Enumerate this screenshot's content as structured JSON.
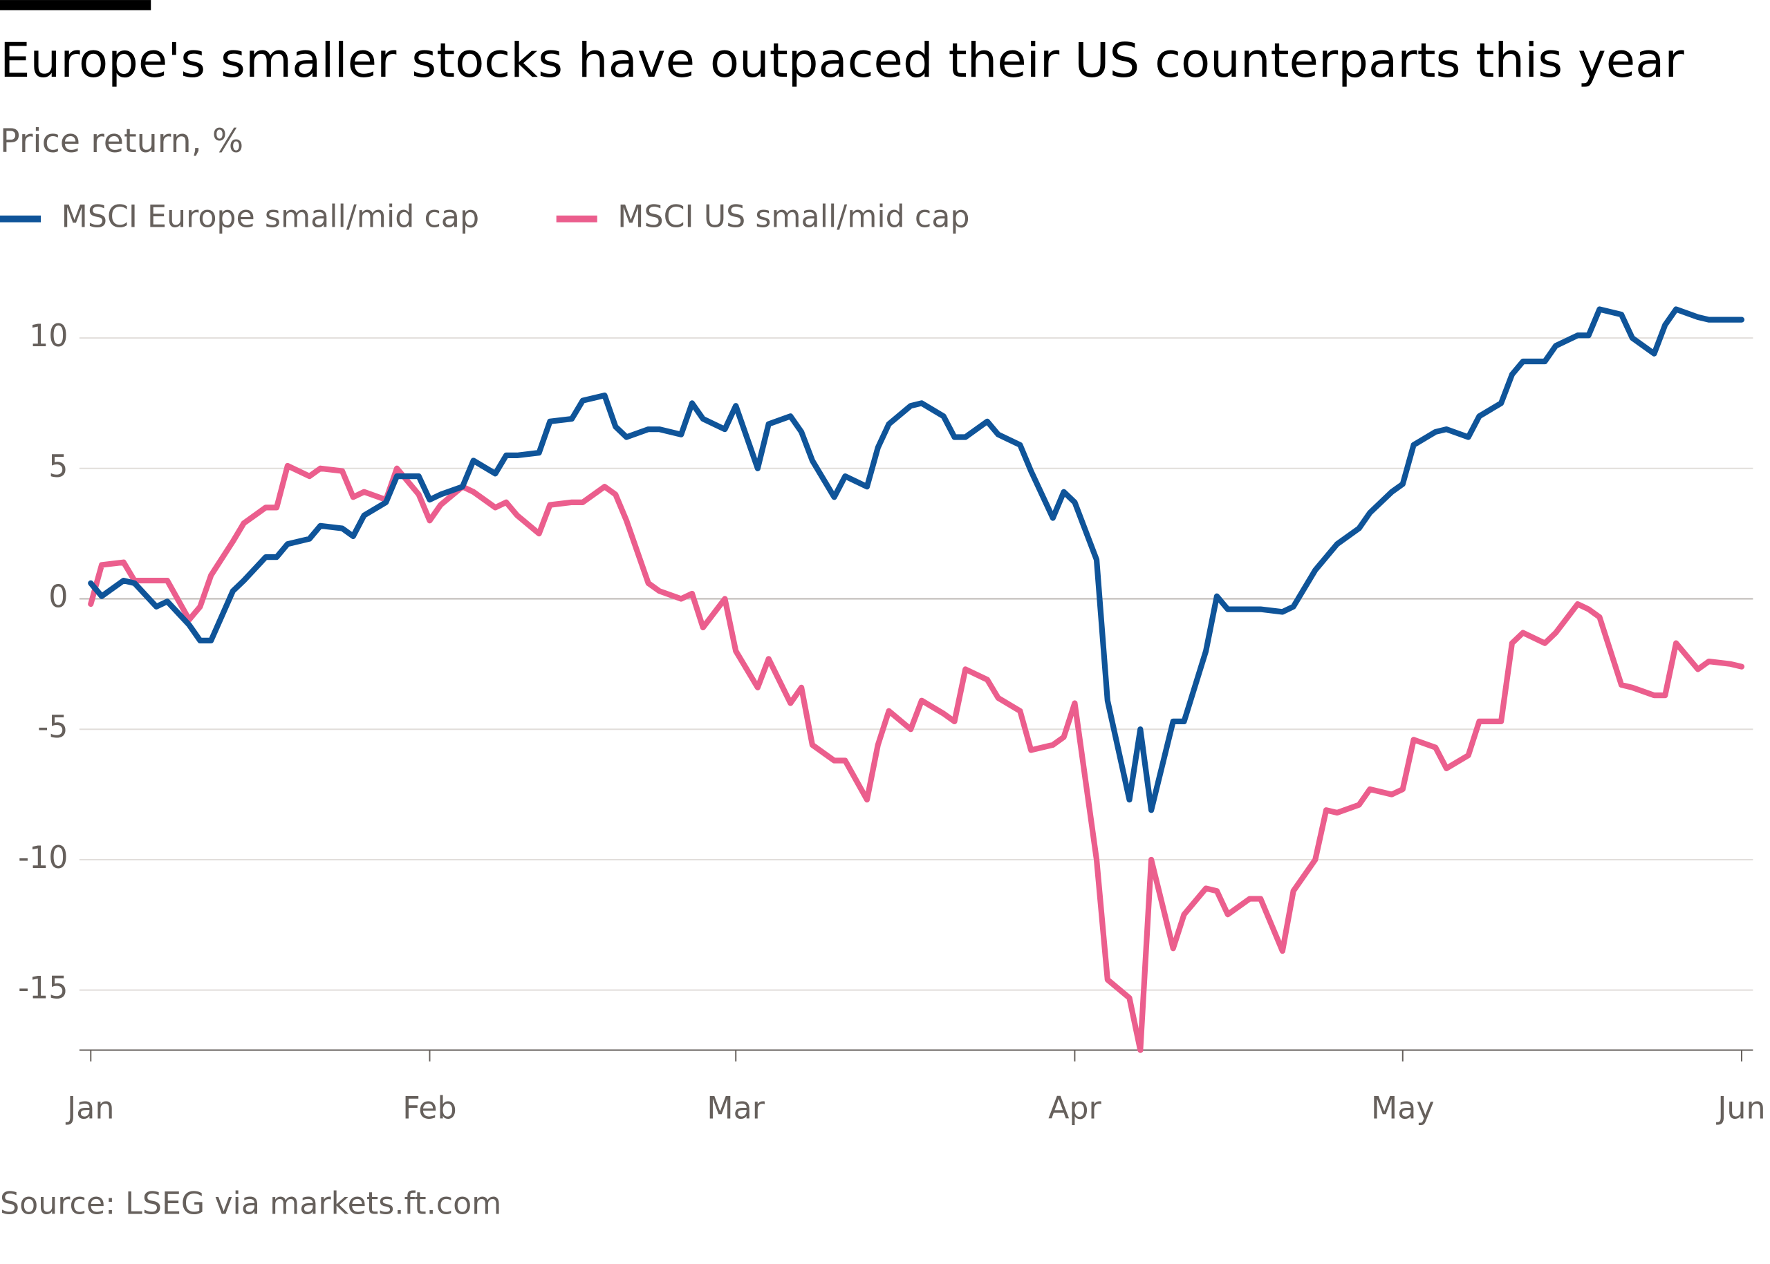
{
  "chart_data": {
    "type": "line",
    "title": "Europe's smaller stocks have outpaced their US counterparts this year",
    "subtitle": "Price return, %",
    "source": "Source: LSEG via markets.ft.com",
    "x": [
      0,
      1,
      3,
      4,
      6,
      7,
      9,
      10,
      11,
      13,
      14,
      16,
      17,
      18,
      20,
      21,
      23,
      24,
      25,
      27,
      28,
      30,
      31,
      32,
      34,
      35,
      37,
      38,
      39,
      41,
      42,
      44,
      45,
      47,
      48,
      49,
      51,
      52,
      54,
      55,
      56,
      58,
      59,
      61,
      62,
      64,
      65,
      66,
      68,
      69,
      71,
      72,
      73,
      75,
      76,
      78,
      79,
      80,
      82,
      83,
      85,
      86,
      88,
      89,
      90,
      92,
      93,
      95,
      96,
      97,
      99,
      100,
      102,
      103,
      104,
      106,
      107,
      109,
      110,
      112,
      113,
      114,
      116,
      117,
      119,
      120,
      121,
      123,
      124,
      126,
      127,
      129,
      130,
      131,
      133,
      134,
      136,
      137,
      138,
      140,
      141,
      143,
      144,
      145,
      147,
      148,
      150,
      151
    ],
    "series": [
      {
        "name": "MSCI Europe small/mid cap",
        "color": "#0f5499",
        "values": [
          0.6,
          0.1,
          0.7,
          0.6,
          -0.3,
          -0.1,
          -1.0,
          -1.6,
          -1.6,
          0.3,
          0.7,
          1.6,
          1.6,
          2.1,
          2.3,
          2.8,
          2.7,
          2.4,
          3.2,
          3.7,
          4.7,
          4.7,
          3.8,
          4.0,
          4.3,
          5.3,
          4.8,
          5.5,
          5.5,
          5.6,
          6.8,
          6.9,
          7.6,
          7.8,
          6.6,
          6.2,
          6.5,
          6.5,
          6.3,
          7.5,
          6.9,
          6.5,
          7.4,
          5.0,
          6.7,
          7.0,
          6.4,
          5.3,
          3.9,
          4.7,
          4.3,
          5.8,
          6.7,
          7.4,
          7.5,
          7.0,
          6.2,
          6.2,
          6.8,
          6.3,
          5.9,
          4.9,
          3.1,
          4.1,
          3.7,
          1.5,
          -3.9,
          -7.7,
          -5.0,
          -8.1,
          -4.7,
          -4.7,
          -2.0,
          0.1,
          -0.4,
          -0.4,
          -0.4,
          -0.5,
          -0.3,
          1.1,
          1.6,
          2.1,
          2.7,
          3.3,
          4.1,
          4.4,
          5.9,
          6.4,
          6.5,
          6.2,
          7.0,
          7.5,
          8.6,
          9.1,
          9.1,
          9.7,
          10.1,
          10.1,
          11.1,
          10.9,
          10.0,
          9.4,
          10.5,
          11.1,
          10.8,
          10.7,
          10.7,
          10.7
        ]
      },
      {
        "name": "MSCI US small/mid cap",
        "color": "#eb5e8d",
        "values": [
          -0.2,
          1.3,
          1.4,
          0.7,
          0.7,
          0.7,
          -0.8,
          -0.3,
          0.9,
          2.2,
          2.9,
          3.5,
          3.5,
          5.1,
          4.7,
          5.0,
          4.9,
          3.9,
          4.1,
          3.8,
          5.0,
          4.0,
          3.0,
          3.6,
          4.3,
          4.1,
          3.5,
          3.7,
          3.2,
          2.5,
          3.6,
          3.7,
          3.7,
          4.3,
          4.0,
          3.0,
          0.6,
          0.3,
          0.0,
          0.2,
          -1.1,
          0.0,
          -2.0,
          -3.4,
          -2.3,
          -4.0,
          -3.4,
          -5.6,
          -6.2,
          -6.2,
          -7.7,
          -5.6,
          -4.3,
          -5.0,
          -3.9,
          -4.4,
          -4.7,
          -2.7,
          -3.1,
          -3.8,
          -4.3,
          -5.8,
          -5.6,
          -5.3,
          -4.0,
          -10.0,
          -14.6,
          -15.3,
          -17.3,
          -10.0,
          -13.4,
          -12.1,
          -11.1,
          -11.2,
          -12.1,
          -11.5,
          -11.5,
          -13.5,
          -11.2,
          -10.0,
          -8.1,
          -8.2,
          -7.9,
          -7.3,
          -7.5,
          -7.3,
          -5.4,
          -5.7,
          -6.5,
          -6.0,
          -4.7,
          -4.7,
          -1.7,
          -1.3,
          -1.7,
          -1.3,
          -0.2,
          -0.4,
          -0.7,
          -3.3,
          -3.4,
          -3.7,
          -3.7,
          -1.7,
          -2.7,
          -2.4,
          -2.5,
          -2.6
        ]
      }
    ],
    "xlim": [
      0,
      151
    ],
    "xticks": [
      {
        "value": 0,
        "label": "Jan"
      },
      {
        "value": 31,
        "label": "Feb"
      },
      {
        "value": 59,
        "label": "Mar"
      },
      {
        "value": 90,
        "label": "Apr"
      },
      {
        "value": 120,
        "label": "May"
      },
      {
        "value": 151,
        "label": "Jun"
      }
    ],
    "ylim": [
      -17.3,
      11.5
    ],
    "yticks": [
      -15,
      -10,
      -5,
      0,
      5,
      10
    ],
    "grid": true,
    "legend": "top"
  }
}
